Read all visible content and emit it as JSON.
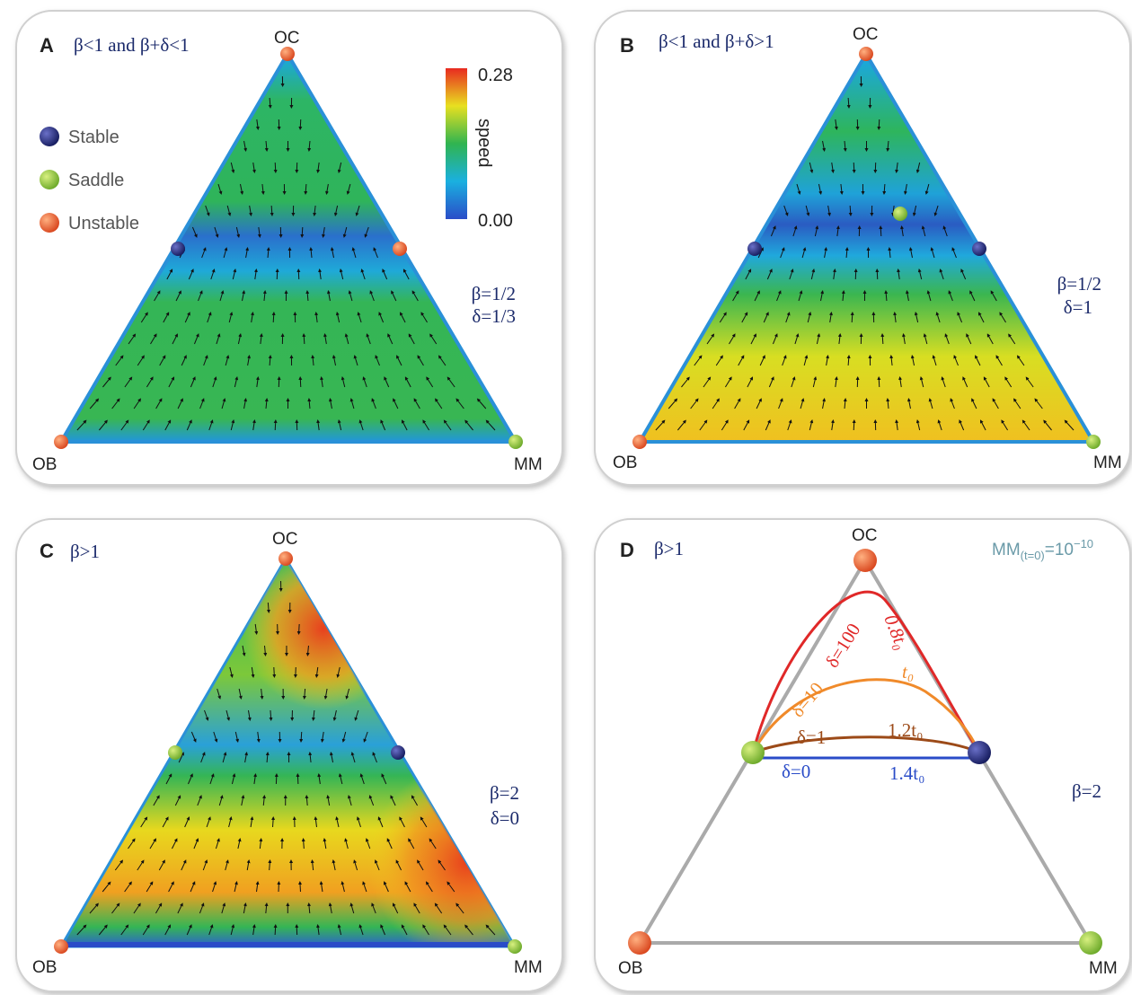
{
  "legend": {
    "stable": "Stable",
    "saddle": "Saddle",
    "unstable": "Unstable"
  },
  "colorbar": {
    "max": "0.28",
    "label": "speed",
    "min": "0.00"
  },
  "panels": [
    {
      "letter": "A",
      "title": "β<1 and β+δ<1",
      "vertices": {
        "top": "OC",
        "left": "OB",
        "right": "MM"
      },
      "params": [
        "β=1/2",
        "δ=1/3"
      ]
    },
    {
      "letter": "B",
      "title": "β<1 and β+δ>1",
      "vertices": {
        "top": "OC",
        "left": "OB",
        "right": "MM"
      },
      "params": [
        "β=1/2",
        "δ=1"
      ]
    },
    {
      "letter": "C",
      "title": "β>1",
      "vertices": {
        "top": "OC",
        "left": "OB",
        "right": "MM"
      },
      "params": [
        "β=2",
        "δ=0"
      ]
    },
    {
      "letter": "D",
      "title": "β>1",
      "vertices": {
        "top": "OC",
        "left": "OB",
        "right": "MM"
      },
      "params": [
        "β=2"
      ]
    }
  ],
  "panel_d_curves": [
    {
      "delta": "δ=100",
      "time": "0.8t₀"
    },
    {
      "delta": "δ=10",
      "time": "t₀"
    },
    {
      "delta": "δ=1",
      "time": "1.2t₀"
    },
    {
      "delta": "δ=0",
      "time": "1.4t₀"
    }
  ],
  "panel_d_note": {
    "base": "MM",
    "sub": "(t=0)",
    "mid": "=10",
    "sup": "−10"
  }
}
